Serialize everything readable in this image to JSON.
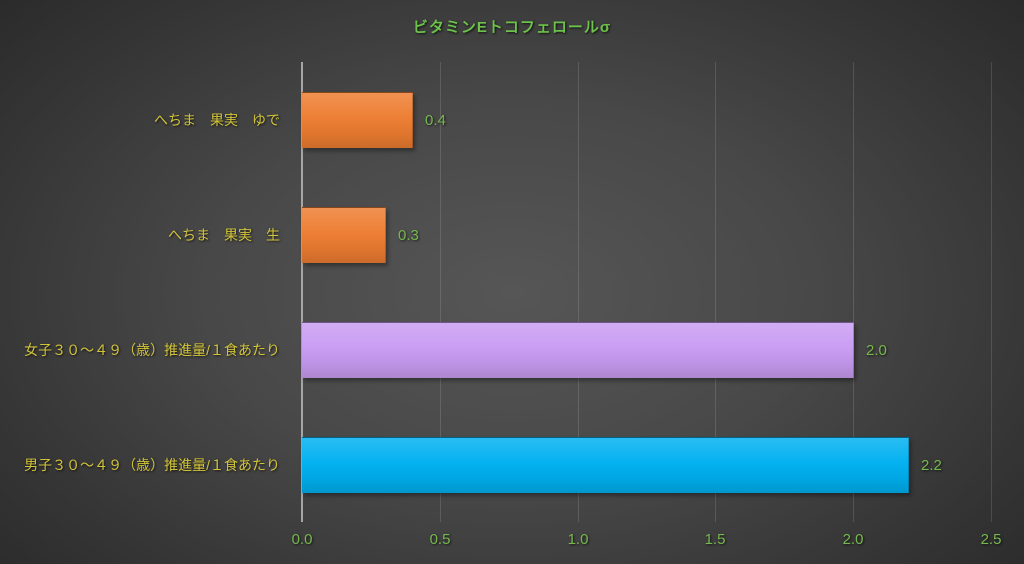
{
  "chart_data": {
    "type": "bar",
    "orientation": "horizontal",
    "title": "ビタミンEトコフェロールσ",
    "categories": [
      "へちま　果実　ゆで",
      "へちま　果実　生",
      "女子３０～４９（歳）推進量/１食あたり",
      "男子３０～４９（歳）推進量/１食あたり"
    ],
    "values": [
      0.4,
      0.3,
      2.0,
      2.2
    ],
    "value_labels": [
      "0.4",
      "0.3",
      "2.0",
      "2.2"
    ],
    "bar_colors": [
      "#ED7D31",
      "#ED7D31",
      "#C99CF2",
      "#00B0F0"
    ],
    "xlabel": "",
    "ylabel": "",
    "xlim": [
      0,
      2.5
    ],
    "x_ticks": [
      0,
      0.5,
      1.0,
      1.5,
      2.0,
      2.5
    ],
    "x_tick_labels": [
      "0.0",
      "0.5",
      "1.0",
      "1.5",
      "2.0",
      "2.5"
    ],
    "grid": true,
    "legend_position": "none"
  },
  "colors": {
    "title_text": "#6CC24A",
    "category_text": "#D2C43A",
    "value_text": "#77B84E",
    "tick_text": "#77B84E",
    "axis_line": "#A6A6A6",
    "gridline": "rgba(255,255,255,0.13)"
  }
}
